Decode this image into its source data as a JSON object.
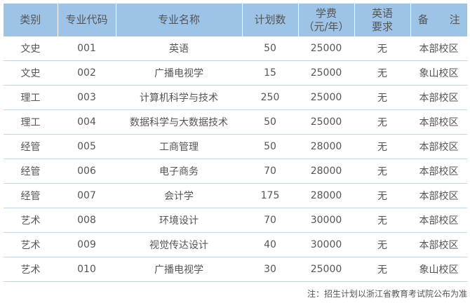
{
  "headers": [
    "类别",
    "专业代码",
    "专业名称",
    "计划数",
    "学费\n（元/年）",
    "英语\n要求",
    "备　　注"
  ],
  "rows": [
    [
      "文史",
      "001",
      "英语",
      "50",
      "25000",
      "无",
      "本部校区"
    ],
    [
      "文史",
      "002",
      "广播电视学",
      "15",
      "25000",
      "无",
      "象山校区"
    ],
    [
      "理工",
      "003",
      "计算机科学与技术",
      "250",
      "25000",
      "无",
      "本部校区"
    ],
    [
      "理工",
      "004",
      "数据科学与大数据技术",
      "50",
      "25000",
      "无",
      "本部校区"
    ],
    [
      "经管",
      "005",
      "工商管理",
      "50",
      "28000",
      "无",
      "本部校区"
    ],
    [
      "经管",
      "006",
      "电子商务",
      "70",
      "28000",
      "无",
      "本部校区"
    ],
    [
      "经管",
      "007",
      "会计学",
      "175",
      "28000",
      "无",
      "本部校区"
    ],
    [
      "艺术",
      "008",
      "环境设计",
      "70",
      "30000",
      "无",
      "本部校区"
    ],
    [
      "艺术",
      "009",
      "视觉传达设计",
      "40",
      "30000",
      "无",
      "本部校区"
    ],
    [
      "艺术",
      "010",
      "广播电视学",
      "30",
      "25000",
      "无",
      "象山校区"
    ]
  ],
  "note": "注：招生计划以浙江省教育考试院公布为准",
  "colors": {
    "header_bg": "#9dc3e6",
    "row_border": "#bcd6ee",
    "text": "#555555"
  }
}
